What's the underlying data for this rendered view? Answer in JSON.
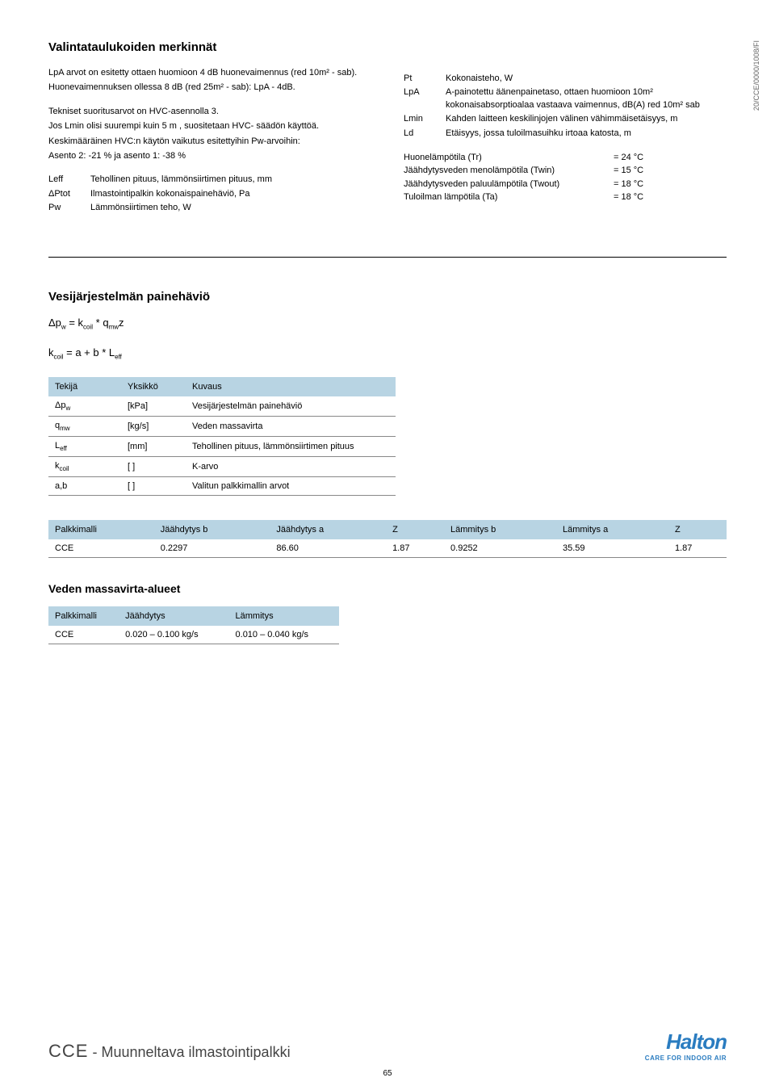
{
  "side_label": "20/CCE/0000/1008/FI",
  "section1": {
    "title": "Valintataulukoiden merkinnät",
    "p1": "LpA arvot on esitetty ottaen huomioon 4 dB huonevaimennus (red 10m² - sab).",
    "p2": "Huonevaimennuksen ollessa 8 dB (red 25m² - sab): LpA - 4dB.",
    "p3": "Tekniset suoritusarvot on HVC-asennolla 3.",
    "p4": "Jos Lmin olisi suurempi kuin 5 m , suositetaan HVC- säädön käyttöä.",
    "p5": "Keskimääräinen HVC:n käytön vaikutus esitettyihin Pw-arvoihin:",
    "p6": "Asento 2: -21 % ja asento 1: -38 %",
    "left_defs": [
      {
        "k": "Leff",
        "v": "Tehollinen pituus, lämmönsiirtimen pituus, mm"
      },
      {
        "k": "ΔPtot",
        "v": "Ilmastointipalkin kokonaispainehäviö, Pa"
      },
      {
        "k": "Pw",
        "v": "Lämmönsiirtimen teho, W"
      }
    ],
    "right_defs": [
      {
        "k": "Pt",
        "v": "Kokonaisteho, W"
      },
      {
        "k": "LpA",
        "v": "A-painotettu äänenpainetaso, ottaen huomioon 10m² kokonaisabsorptioalaa vastaava vaimennus, dB(A) red 10m² sab"
      },
      {
        "k": "Lmin",
        "v": "Kahden laitteen keskilinjojen välinen vähimmäisetäisyys, m"
      },
      {
        "k": "Ld",
        "v": "Etäisyys, jossa tuloilmasuihku irtoaa katosta, m"
      }
    ],
    "conditions": [
      {
        "l": "Huonelämpötila (Tr)",
        "r": "= 24 °C"
      },
      {
        "l": "Jäähdytysveden menolämpötila (Twin)",
        "r": "= 15 °C"
      },
      {
        "l": "Jäähdytysveden paluulämpötila (Twout)",
        "r": "= 18 °C"
      },
      {
        "l": "Tuloilman lämpötila (Ta)",
        "r": "= 18 °C"
      }
    ]
  },
  "section2": {
    "title": "Vesijärjestelmän painehäviö",
    "formula1_lhs": "Δp",
    "formula1_sub1": "w",
    "formula1_mid": " = k",
    "formula1_sub2": "coil",
    "formula1_mid2": " * q",
    "formula1_sub3": "mw",
    "formula1_end": "z",
    "formula2_lhs": "k",
    "formula2_sub1": "coil",
    "formula2_mid": " = a + b * L",
    "formula2_sub2": "eff",
    "table1": {
      "headers": [
        "Tekijä",
        "Yksikkö",
        "Kuvaus"
      ],
      "rows": [
        {
          "c1": "Δp",
          "c1sub": "w",
          "c2": "[kPa]",
          "c3": "Vesijärjestelmän painehäviö"
        },
        {
          "c1": "q",
          "c1sub": "mw",
          "c2": "[kg/s]",
          "c3": "Veden massavirta"
        },
        {
          "c1": "L",
          "c1sub": "eff",
          "c2": "[mm]",
          "c3": "Tehollinen pituus, lämmönsiirtimen pituus"
        },
        {
          "c1": "k",
          "c1sub": "coil",
          "c2": "[ ]",
          "c3": "K-arvo"
        },
        {
          "c1": "a,b",
          "c1sub": "",
          "c2": "[ ]",
          "c3": "Valitun palkkimallin arvot"
        }
      ]
    },
    "table2": {
      "headers": [
        "Palkkimalli",
        "Jäähdytys b",
        "Jäähdytys a",
        "Z",
        "Lämmitys b",
        "Lämmitys a",
        "Z"
      ],
      "rows": [
        [
          "CCE",
          "0.2297",
          "86.60",
          "1.87",
          "0.9252",
          "35.59",
          "1.87"
        ]
      ]
    }
  },
  "section3": {
    "title": "Veden massavirta-alueet",
    "table": {
      "headers": [
        "Palkkimalli",
        "Jäähdytys",
        "Lämmitys"
      ],
      "rows": [
        [
          "CCE",
          "0.020 – 0.100 kg/s",
          "0.010 – 0.040 kg/s"
        ]
      ]
    }
  },
  "footer": {
    "code": "CCE",
    "desc": " - Muunneltava ilmastointipalkki",
    "logo_name": "Halton",
    "logo_tag": "CARE FOR INDOOR AIR"
  },
  "page_number": "65"
}
